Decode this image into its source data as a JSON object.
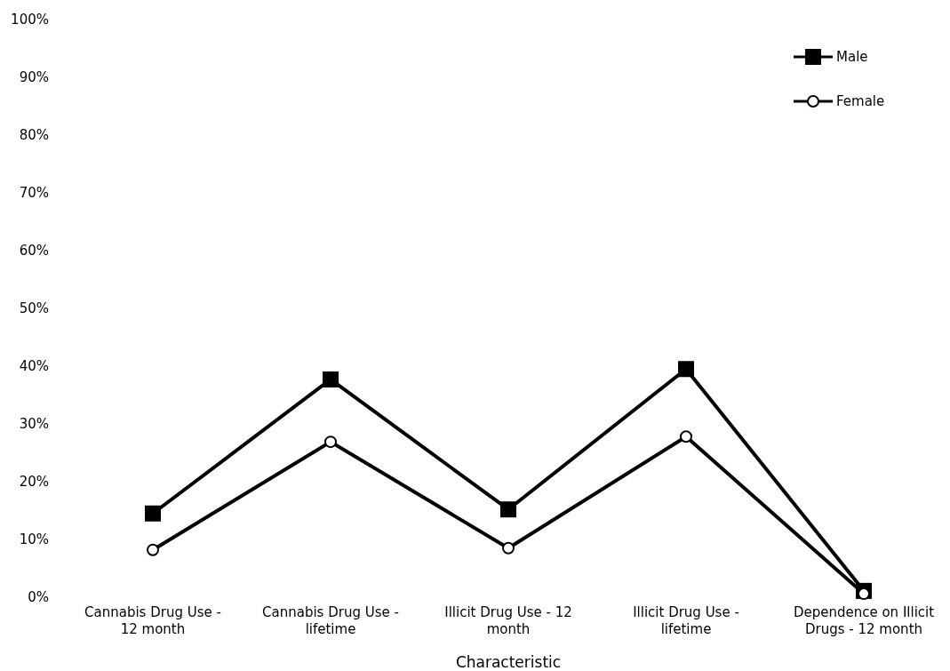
{
  "chart_data": {
    "type": "line",
    "xlabel": "Characteristic",
    "categories": [
      "Cannabis Drug Use - 12 month",
      "Cannabis Drug Use - lifetime",
      "Illicit Drug Use - 12 month",
      "Illicit Drug Use - lifetime",
      "Dependence on Illicit Drugs - 12 month"
    ],
    "series": [
      {
        "name": "Male",
        "color": "#000000",
        "marker": "square",
        "values": [
          14.5,
          37.7,
          15.2,
          39.5,
          1.1
        ]
      },
      {
        "name": "Female",
        "color": "#000000",
        "marker": "circle",
        "values": [
          8.2,
          26.9,
          8.5,
          27.8,
          0.6
        ]
      }
    ],
    "ylim": [
      0,
      100
    ],
    "yticks": [
      {
        "value": 0,
        "label": "0%"
      },
      {
        "value": 10,
        "label": "10%"
      },
      {
        "value": 20,
        "label": "20%"
      },
      {
        "value": 30,
        "label": "30%"
      },
      {
        "value": 40,
        "label": "40%"
      },
      {
        "value": 50,
        "label": "50%"
      },
      {
        "value": 60,
        "label": "60%"
      },
      {
        "value": 70,
        "label": "70%"
      },
      {
        "value": 80,
        "label": "80%"
      },
      {
        "value": 90,
        "label": "90%"
      },
      {
        "value": 100,
        "label": "100%"
      }
    ],
    "legend": "top right",
    "line_style": "solid",
    "grid": false
  }
}
